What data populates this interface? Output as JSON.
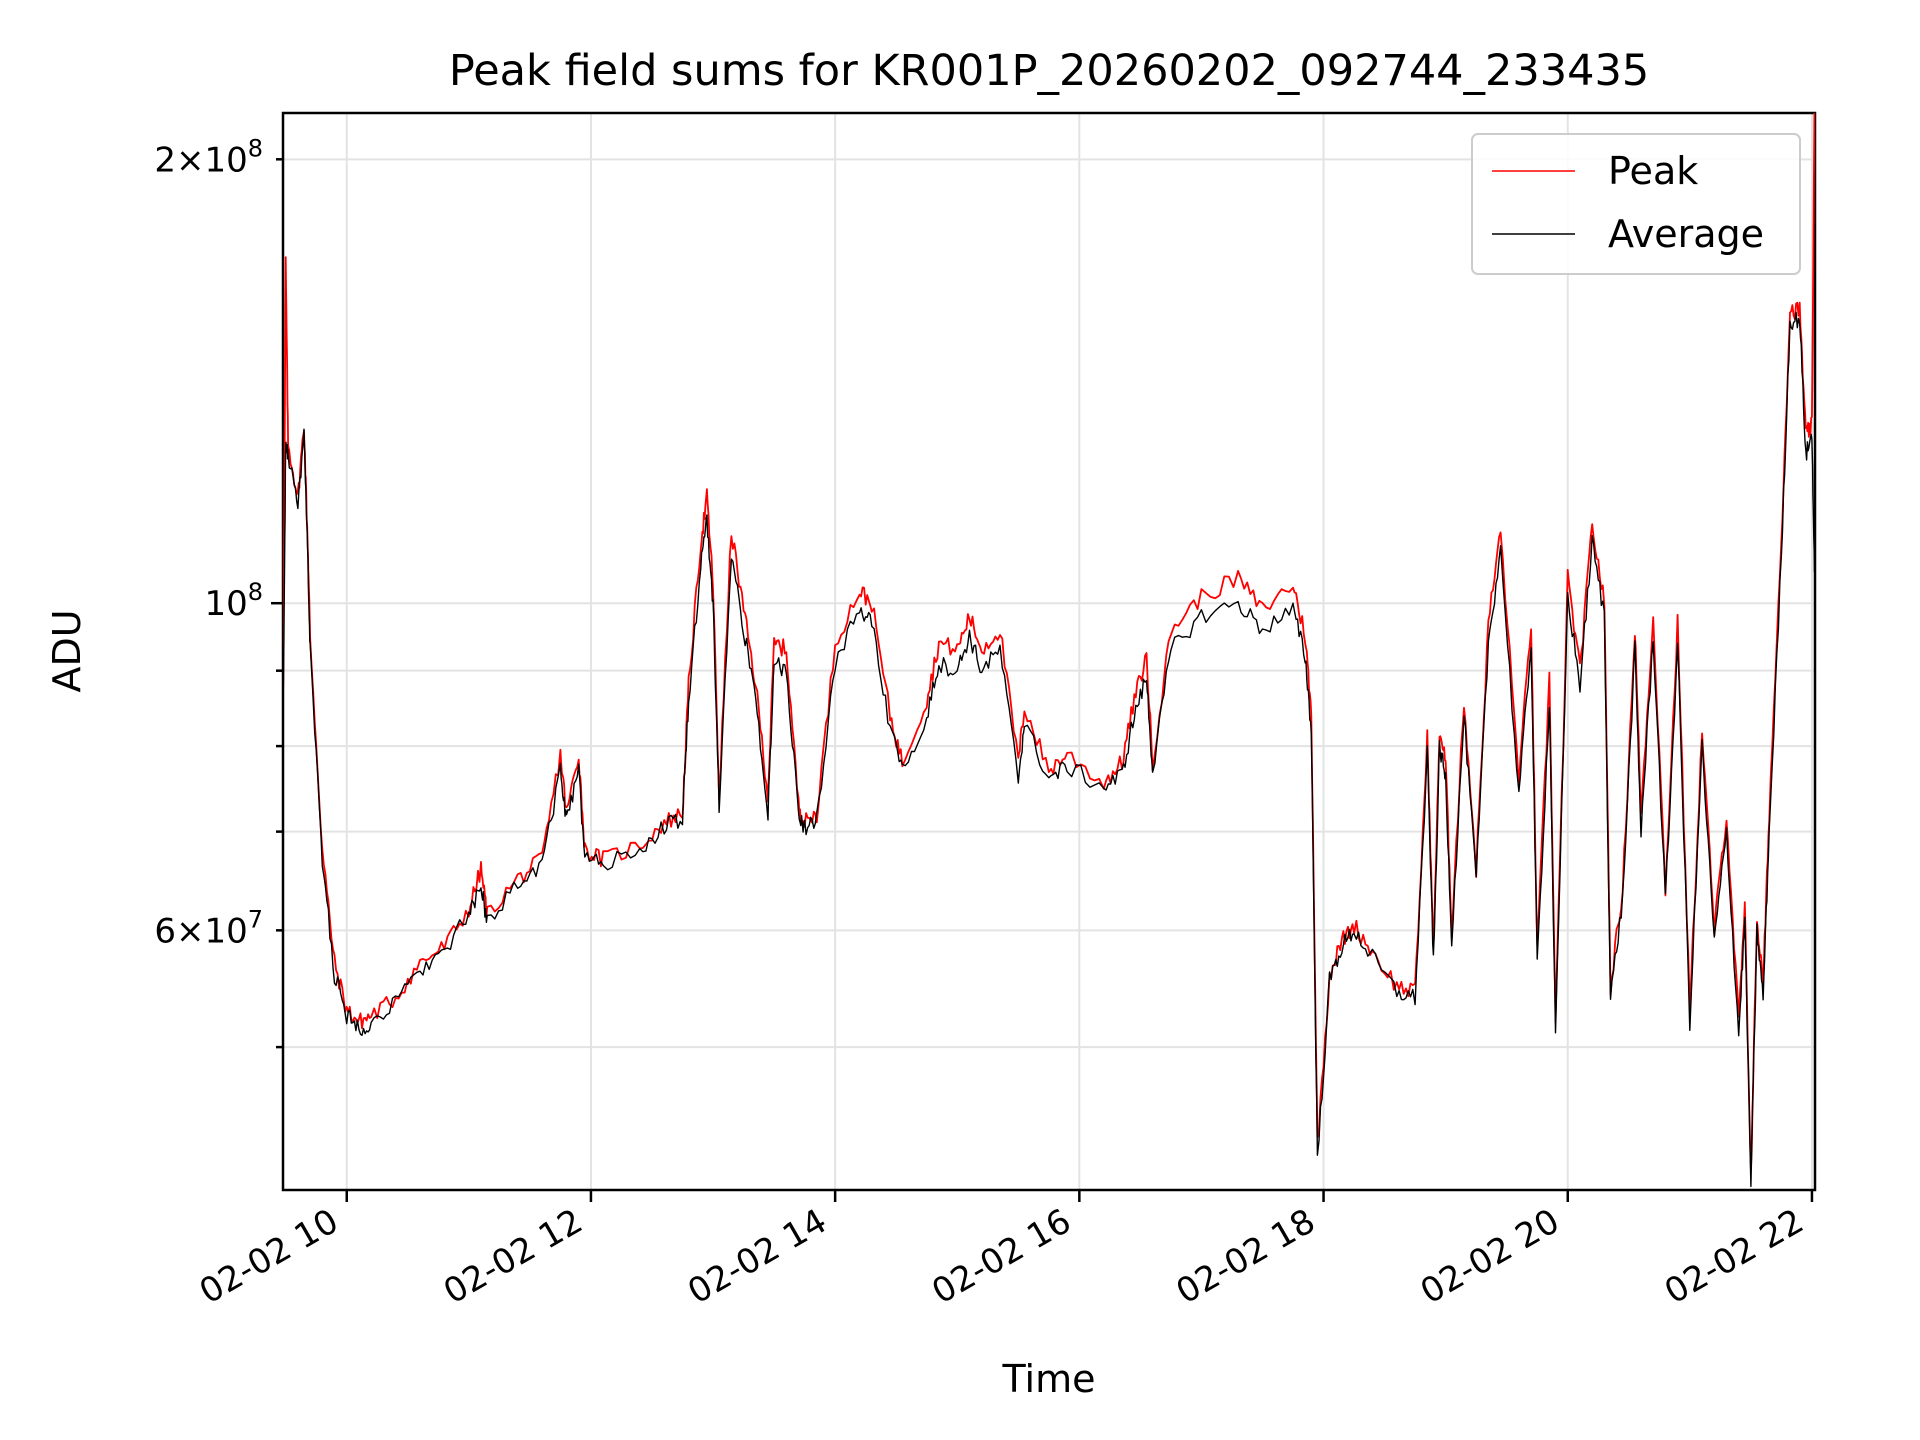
{
  "chart_data": {
    "type": "line",
    "title": "Peak field sums for KR001P_20260202_092744_233435",
    "xlabel": "Time",
    "ylabel": "ADU",
    "x_unit": "hours since 2026-02-02 00:00",
    "xlim": [
      9.478,
      22.025
    ],
    "ylim": [
      40000000,
      215000000
    ],
    "yscale": "log",
    "grid": true,
    "legend_position": "top-right",
    "x_ticks": [
      {
        "value": 10,
        "label": "02-02 10"
      },
      {
        "value": 12,
        "label": "02-02 12"
      },
      {
        "value": 14,
        "label": "02-02 14"
      },
      {
        "value": 16,
        "label": "02-02 16"
      },
      {
        "value": 18,
        "label": "02-02 18"
      },
      {
        "value": 20,
        "label": "02-02 20"
      },
      {
        "value": 22,
        "label": "02-02 22"
      }
    ],
    "y_major_ticks": [
      {
        "value": 100000000,
        "base": "10",
        "exp": "8"
      }
    ],
    "y_minor_ticks": [
      {
        "value": 200000000,
        "mantissa": "2",
        "base": "10",
        "exp": "8"
      },
      {
        "value": 60000000,
        "mantissa": "6",
        "base": "10",
        "exp": "7"
      }
    ],
    "y_minor_grid": [
      50000000,
      70000000,
      80000000,
      90000000
    ],
    "series": [
      {
        "name": "Peak",
        "color": "#ff0000",
        "x": [
          9.48,
          9.5,
          9.52,
          9.6,
          9.65,
          9.68,
          9.7,
          9.8,
          9.9,
          10.0,
          10.1,
          10.2,
          10.4,
          10.6,
          10.8,
          11.0,
          11.1,
          11.15,
          11.4,
          11.6,
          11.75,
          11.8,
          11.9,
          11.95,
          12.1,
          12.4,
          12.6,
          12.75,
          12.8,
          12.9,
          12.95,
          13.0,
          13.05,
          13.15,
          13.25,
          13.35,
          13.45,
          13.5,
          13.6,
          13.7,
          13.75,
          13.85,
          14.0,
          14.2,
          14.3,
          14.45,
          14.55,
          14.75,
          14.85,
          15.0,
          15.1,
          15.2,
          15.35,
          15.5,
          15.55,
          15.75,
          15.9,
          16.2,
          16.35,
          16.45,
          16.55,
          16.6,
          16.75,
          17.0,
          17.3,
          17.5,
          17.75,
          17.85,
          17.9,
          17.95,
          18.05,
          18.15,
          18.25,
          18.4,
          18.6,
          18.75,
          18.85,
          18.9,
          18.95,
          19.0,
          19.05,
          19.15,
          19.25,
          19.35,
          19.45,
          19.6,
          19.7,
          19.75,
          19.85,
          19.9,
          20.0,
          20.1,
          20.2,
          20.3,
          20.35,
          20.45,
          20.55,
          20.6,
          20.7,
          20.8,
          20.9,
          21.0,
          21.1,
          21.2,
          21.3,
          21.4,
          21.45,
          21.5,
          21.55,
          21.6,
          21.65,
          21.75,
          21.82,
          21.9,
          21.95,
          22.0,
          22.02
        ],
        "y": [
          88000000,
          170000000,
          128000000,
          118000000,
          132000000,
          110000000,
          95000000,
          68000000,
          57000000,
          53000000,
          52000000,
          52500000,
          54000000,
          57000000,
          58500000,
          62000000,
          66000000,
          61500000,
          65000000,
          67000000,
          79000000,
          72000000,
          79000000,
          68000000,
          67000000,
          68500000,
          71000000,
          72000000,
          88000000,
          110000000,
          118000000,
          103000000,
          74000000,
          112000000,
          99000000,
          88000000,
          74000000,
          94000000,
          93000000,
          73000000,
          71000000,
          72000000,
          94000000,
          102000000,
          100000000,
          84000000,
          78000000,
          86000000,
          94000000,
          93000000,
          98000000,
          93000000,
          96000000,
          78000000,
          85000000,
          77000000,
          79000000,
          75500000,
          78000000,
          86000000,
          92000000,
          78000000,
          96000000,
          101000000,
          104000000,
          99000000,
          103000000,
          95000000,
          84000000,
          43000000,
          56000000,
          59000000,
          60500000,
          58000000,
          55000000,
          54500000,
          81000000,
          58000000,
          82000000,
          78000000,
          60000000,
          86000000,
          66000000,
          97000000,
          112000000,
          76000000,
          97000000,
          58000000,
          89000000,
          52000000,
          104000000,
          90000000,
          113000000,
          100000000,
          55000000,
          64000000,
          96000000,
          72000000,
          98000000,
          64000000,
          97000000,
          53000000,
          82000000,
          60000000,
          72000000,
          52000000,
          62000000,
          41000000,
          61000000,
          55000000,
          72000000,
          111000000,
          158000000,
          158000000,
          130000000,
          132000000,
          215000000
        ]
      },
      {
        "name": "Average",
        "color": "#000000",
        "x": [
          9.48,
          9.5,
          9.52,
          9.6,
          9.65,
          9.68,
          9.7,
          9.8,
          9.9,
          10.0,
          10.1,
          10.2,
          10.4,
          10.6,
          10.8,
          11.0,
          11.1,
          11.15,
          11.4,
          11.6,
          11.75,
          11.8,
          11.9,
          11.95,
          12.1,
          12.4,
          12.6,
          12.75,
          12.8,
          12.9,
          12.95,
          13.0,
          13.05,
          13.15,
          13.25,
          13.35,
          13.45,
          13.5,
          13.6,
          13.7,
          13.75,
          13.85,
          14.0,
          14.2,
          14.3,
          14.45,
          14.55,
          14.75,
          14.85,
          15.0,
          15.1,
          15.2,
          15.35,
          15.5,
          15.55,
          15.75,
          15.9,
          16.2,
          16.35,
          16.45,
          16.55,
          16.6,
          16.75,
          17.0,
          17.3,
          17.5,
          17.75,
          17.85,
          17.9,
          17.95,
          18.05,
          18.15,
          18.25,
          18.4,
          18.6,
          18.75,
          18.85,
          18.9,
          18.95,
          19.0,
          19.05,
          19.15,
          19.25,
          19.35,
          19.45,
          19.6,
          19.7,
          19.75,
          19.85,
          19.9,
          20.0,
          20.1,
          20.2,
          20.3,
          20.35,
          20.45,
          20.55,
          20.6,
          20.7,
          20.8,
          20.9,
          21.0,
          21.1,
          21.2,
          21.3,
          21.4,
          21.45,
          21.5,
          21.55,
          21.6,
          21.65,
          21.75,
          21.82,
          21.9,
          21.95,
          22.0,
          22.02
        ],
        "y": [
          86000000,
          128000000,
          126000000,
          116000000,
          130000000,
          108000000,
          93000000,
          67000000,
          56000000,
          52500000,
          51500000,
          52000000,
          53500000,
          56500000,
          58000000,
          61500000,
          64000000,
          61000000,
          64500000,
          66500000,
          77000000,
          71000000,
          77000000,
          67000000,
          66500000,
          68000000,
          70500000,
          71500000,
          86000000,
          106000000,
          114000000,
          100000000,
          73000000,
          108000000,
          96000000,
          86000000,
          72000000,
          91000000,
          90000000,
          72000000,
          70500000,
          71500000,
          91000000,
          99000000,
          97000000,
          82000000,
          77000000,
          84000000,
          91000000,
          90000000,
          95000000,
          90000000,
          93000000,
          76000000,
          83000000,
          76000000,
          77500000,
          75000000,
          76500000,
          84000000,
          89000000,
          77000000,
          93000000,
          98000000,
          100000000,
          96000000,
          99000000,
          92000000,
          82000000,
          42000000,
          55500000,
          58500000,
          60000000,
          57500000,
          54500000,
          54000000,
          79000000,
          57000000,
          80000000,
          76000000,
          59000000,
          84000000,
          65000000,
          94000000,
          109000000,
          74000000,
          94000000,
          57000000,
          86000000,
          51000000,
          101000000,
          88000000,
          110000000,
          98000000,
          54000000,
          63000000,
          93000000,
          70000000,
          95000000,
          63000000,
          94000000,
          52000000,
          80000000,
          59000000,
          70000000,
          51000000,
          61000000,
          40500000,
          60000000,
          54000000,
          70000000,
          108000000,
          155000000,
          156000000,
          126000000,
          130000000,
          105000000
        ]
      }
    ]
  }
}
